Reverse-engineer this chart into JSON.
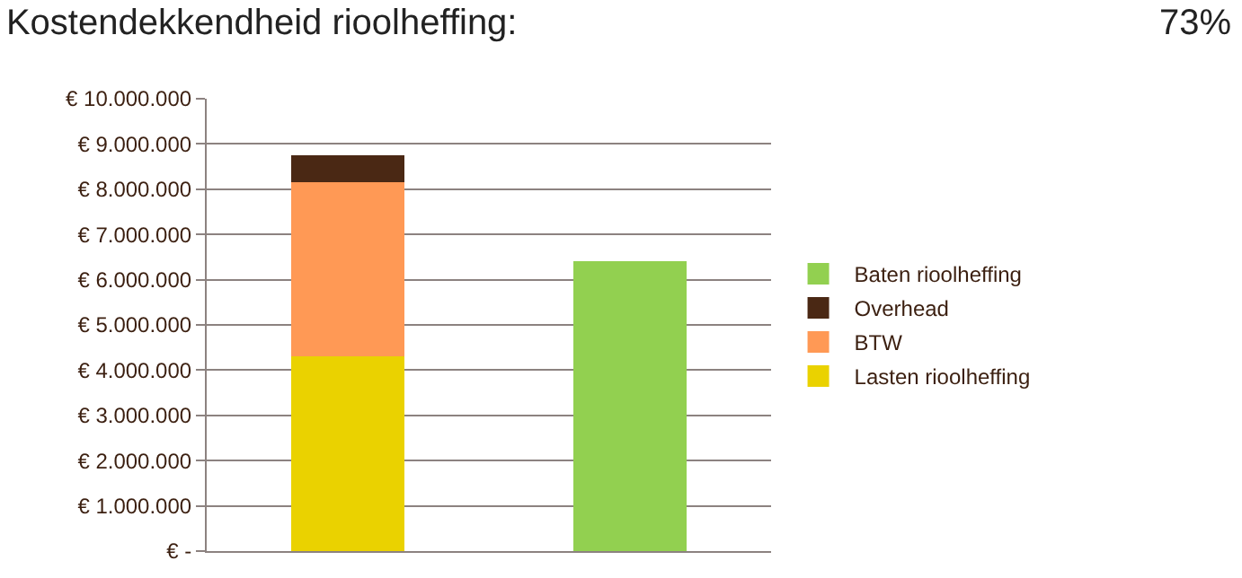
{
  "chart_data": {
    "type": "bar",
    "stacked": true,
    "title": "Kostendekkendheid rioolheffing:",
    "annotations": [
      "73%"
    ],
    "categories": [
      null,
      null
    ],
    "series": [
      {
        "name": "Lasten rioolheffing",
        "color": "#ead200",
        "values": [
          4300000,
          null
        ]
      },
      {
        "name": "BTW",
        "color": "#ff9955",
        "values": [
          3850000,
          null
        ]
      },
      {
        "name": "Overhead",
        "color": "#4a2814",
        "values": [
          600000,
          null
        ]
      },
      {
        "name": "Baten rioolheffing",
        "color": "#92d050",
        "values": [
          null,
          6400000
        ]
      }
    ],
    "ylim": [
      0,
      10000000
    ],
    "yticks": [
      {
        "value": 0,
        "label": "€ -"
      },
      {
        "value": 1000000,
        "label": "€ 1.000.000"
      },
      {
        "value": 2000000,
        "label": "€ 2.000.000"
      },
      {
        "value": 3000000,
        "label": "€ 3.000.000"
      },
      {
        "value": 4000000,
        "label": "€ 4.000.000"
      },
      {
        "value": 5000000,
        "label": "€ 5.000.000"
      },
      {
        "value": 6000000,
        "label": "€ 6.000.000"
      },
      {
        "value": 7000000,
        "label": "€ 7.000.000"
      },
      {
        "value": 8000000,
        "label": "€ 8.000.000"
      },
      {
        "value": 9000000,
        "label": "€ 9.000.000"
      },
      {
        "value": 10000000,
        "label": "€ 10.000.000"
      }
    ],
    "grid": "y",
    "legend": "right"
  }
}
